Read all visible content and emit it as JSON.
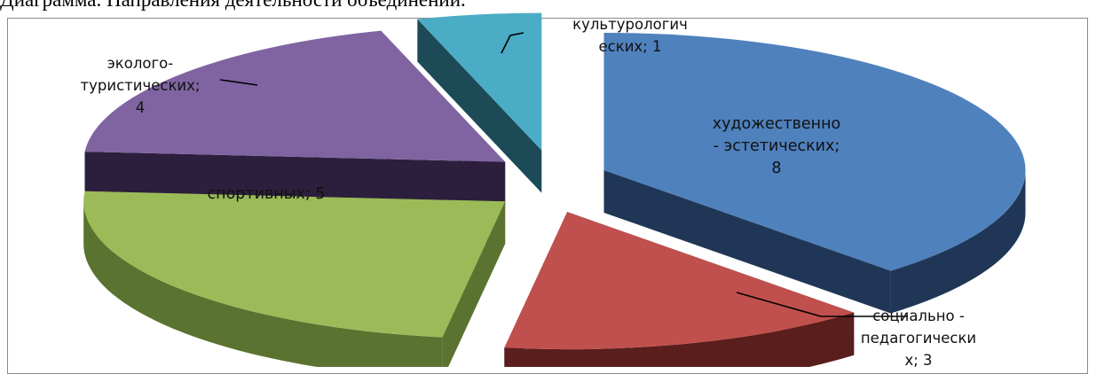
{
  "caption": "Диаграмма. Направления деятельности объединений.",
  "chart_data": {
    "type": "pie",
    "title": "",
    "exploded": true,
    "three_d": true,
    "slices": [
      {
        "label_lines": [
          "художественно",
          "- эстетических;",
          "8"
        ],
        "value": 8,
        "color": "#4f81bd",
        "side": "#1f3656"
      },
      {
        "label_lines": [
          "социально -",
          "педагогически",
          "х; 3"
        ],
        "value": 3,
        "color": "#c0504d",
        "side": "#5a1e1c"
      },
      {
        "label_lines": [
          "спортивных; 5"
        ],
        "value": 5,
        "color": "#9bbb59",
        "side": "#5b7330"
      },
      {
        "label_lines": [
          "эколого-",
          "туристических;",
          "4"
        ],
        "value": 4,
        "color": "#8064a2",
        "side": "#2c1f3d"
      },
      {
        "label_lines": [
          "культурологич",
          "еских; 1"
        ],
        "value": 1,
        "color": "#4bacc6",
        "side": "#1d4a57"
      }
    ]
  }
}
